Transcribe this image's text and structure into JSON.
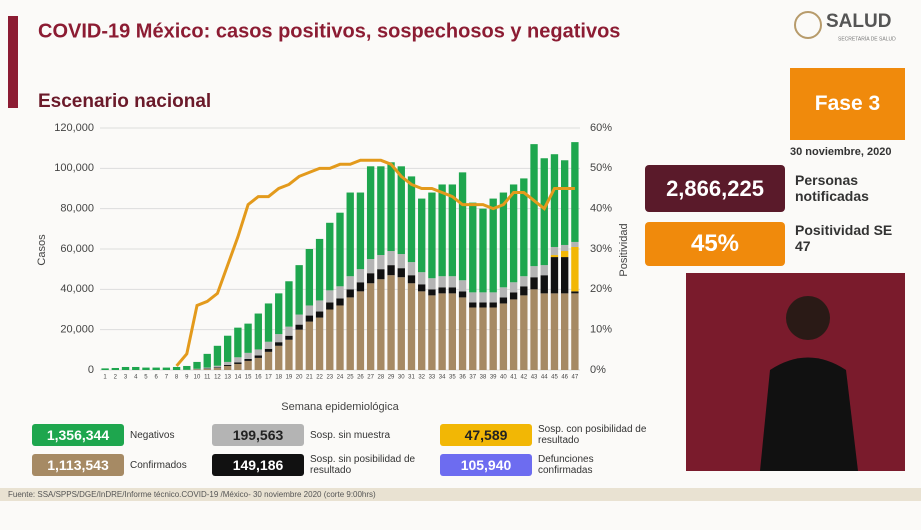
{
  "header": {
    "title": "COVID-19 México: casos positivos, sospechosos y negativos",
    "subtitle": "Escenario nacional",
    "logo": "SALUD",
    "logo_sub": "SECRETARÍA DE SALUD"
  },
  "panel": {
    "phase": "Fase 3",
    "date": "30 noviembre, 2020",
    "notified_value": "2,866,225",
    "notified_label": "Personas notificadas",
    "positivity_value": "45%",
    "positivity_label": "Positividad SE 47"
  },
  "chart_data": {
    "type": "bar",
    "stacked": true,
    "xlabel": "Semana epidemiológica",
    "ylabel": "Casos",
    "y2label": "Positividad",
    "grid": true,
    "categories": [
      "1",
      "2",
      "3",
      "4",
      "5",
      "6",
      "7",
      "8",
      "9",
      "10",
      "11",
      "12",
      "13",
      "14",
      "15",
      "16",
      "17",
      "18",
      "19",
      "20",
      "21",
      "22",
      "23",
      "24",
      "25",
      "26",
      "27",
      "28",
      "29",
      "30",
      "31",
      "32",
      "33",
      "34",
      "35",
      "36",
      "37",
      "38",
      "39",
      "40",
      "41",
      "42",
      "43",
      "44",
      "45",
      "46",
      "47"
    ],
    "series": [
      {
        "name": "Negativos",
        "total": "1,356,344",
        "color": "#1ea64e",
        "values": [
          800,
          1000,
          1500,
          1500,
          1200,
          1200,
          1200,
          1500,
          1900,
          3400,
          6800,
          9900,
          13000,
          14700,
          14500,
          17800,
          19000,
          20200,
          22500,
          24500,
          28000,
          30500,
          33500,
          36500,
          41500,
          38000,
          46000,
          44000,
          44000,
          43500,
          42500,
          36500,
          42500,
          45500,
          45500,
          53500,
          44500,
          41500,
          46500,
          47000,
          48500,
          48500,
          60500,
          53000,
          46000,
          42000,
          49500
        ]
      },
      {
        "name": "Sosp. sin muestra",
        "total": "199,563",
        "color": "#b4b4b4",
        "values": [
          0,
          0,
          0,
          0,
          0,
          0,
          0,
          0,
          0,
          200,
          500,
          800,
          1500,
          2500,
          3000,
          3000,
          3500,
          4000,
          4500,
          5000,
          5000,
          5500,
          6000,
          6000,
          6500,
          6500,
          7000,
          7000,
          7000,
          7000,
          6500,
          6000,
          5500,
          5500,
          5500,
          5500,
          5000,
          5000,
          5000,
          5000,
          5000,
          5000,
          5500,
          5000,
          4000,
          3000,
          2500
        ]
      },
      {
        "name": "Sosp. con posibilidad de resultado",
        "total": "47,589",
        "color": "#f2b705",
        "values": [
          0,
          0,
          0,
          0,
          0,
          0,
          0,
          0,
          0,
          0,
          0,
          0,
          0,
          0,
          0,
          0,
          0,
          0,
          0,
          0,
          0,
          0,
          0,
          0,
          0,
          0,
          0,
          0,
          0,
          0,
          0,
          0,
          0,
          0,
          0,
          0,
          0,
          0,
          0,
          0,
          0,
          0,
          0,
          0,
          1000,
          3000,
          22000
        ]
      },
      {
        "name": "Confirmados",
        "total": "1,113,543",
        "color": "#a68a64",
        "values": [
          0,
          0,
          0,
          0,
          0,
          0,
          0,
          0,
          100,
          300,
          500,
          1000,
          2000,
          3000,
          4500,
          6000,
          9000,
          12000,
          15000,
          20000,
          24000,
          26000,
          30000,
          32000,
          36000,
          39000,
          43000,
          45000,
          47000,
          46000,
          43000,
          39000,
          37000,
          38000,
          38000,
          36000,
          31000,
          31000,
          31000,
          33000,
          35000,
          37000,
          40000,
          38000,
          38000,
          38000,
          38000
        ]
      },
      {
        "name": "Sosp. sin posibilidad de resultado",
        "total": "149,186",
        "color": "#111111",
        "values": [
          0,
          0,
          0,
          0,
          0,
          0,
          0,
          0,
          0,
          100,
          200,
          300,
          500,
          800,
          1000,
          1200,
          1500,
          1800,
          2000,
          2500,
          3000,
          3000,
          3500,
          3500,
          4000,
          4500,
          5000,
          5000,
          5000,
          4500,
          4000,
          3500,
          3000,
          3000,
          3000,
          3000,
          2500,
          2500,
          2500,
          3000,
          3500,
          4500,
          6000,
          9000,
          18000,
          18000,
          1000
        ]
      }
    ],
    "extra_legend": {
      "name": "Defunciones confirmadas",
      "total": "105,940",
      "color": "#6d6cf0"
    },
    "line": {
      "axis": "y2",
      "color": "#e39a1c",
      "values": [
        null,
        null,
        null,
        null,
        null,
        null,
        null,
        1,
        4,
        16,
        17,
        19,
        26,
        33,
        41,
        43,
        43,
        45,
        46,
        48,
        49,
        50,
        50,
        51,
        51,
        52,
        52,
        52,
        51,
        48,
        46,
        45,
        45,
        44,
        43,
        41,
        41,
        41,
        40,
        41,
        44,
        44,
        42,
        40,
        45,
        45,
        45
      ]
    },
    "ylim": [
      0,
      120000
    ],
    "yticks": [
      {
        "value": 0,
        "label": "0"
      },
      {
        "value": 20000,
        "label": "20,000"
      },
      {
        "value": 40000,
        "label": "40,000"
      },
      {
        "value": 60000,
        "label": "60,000"
      },
      {
        "value": 80000,
        "label": "80,000"
      },
      {
        "value": 100000,
        "label": "100,000"
      },
      {
        "value": 120000,
        "label": "120,000"
      }
    ],
    "y2lim": [
      0,
      60
    ],
    "y2ticks": [
      {
        "value": 0,
        "label": "0%"
      },
      {
        "value": 10,
        "label": "10%"
      },
      {
        "value": 20,
        "label": "20%"
      },
      {
        "value": 30,
        "label": "30%"
      },
      {
        "value": 40,
        "label": "40%"
      },
      {
        "value": 50,
        "label": "50%"
      },
      {
        "value": 60,
        "label": "60%"
      }
    ]
  },
  "footer": {
    "source": "Fuente: SSA/SPPS/DGE/InDRE/Informe técnico.COVID-19 /México- 30 noviembre 2020 (corte 9:00hrs)"
  }
}
